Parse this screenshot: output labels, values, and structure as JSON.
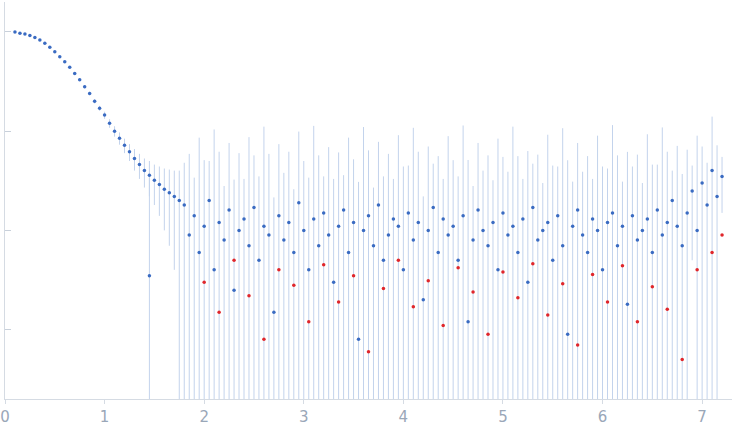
{
  "chart_data": {
    "type": "scatter",
    "log": "y",
    "grid": false,
    "tick_labels": "x",
    "marker": "circle",
    "xlim": [
      0,
      7.3
    ],
    "xticks": [
      0,
      1,
      2,
      3,
      4,
      5,
      6,
      7
    ],
    "ylim": [
      0.0002,
      2
    ],
    "yticks": [
      0.001,
      0.01,
      0.1,
      1
    ],
    "series": [
      {
        "color": "#3a6bc2",
        "x": [
          0.1,
          0.15,
          0.2,
          0.25,
          0.3,
          0.35,
          0.4,
          0.45,
          0.5,
          0.55,
          0.6,
          0.65,
          0.7,
          0.75,
          0.8,
          0.85,
          0.9,
          0.95,
          1.0,
          1.05,
          1.1,
          1.15,
          1.2,
          1.25,
          1.3,
          1.35,
          1.4,
          1.45,
          1.5,
          1.55,
          1.6,
          1.65,
          1.7,
          1.75,
          1.45,
          1.8,
          1.85,
          1.9,
          1.95,
          2.0,
          2.05,
          2.1,
          2.15,
          2.2,
          2.25,
          2.3,
          2.35,
          2.4,
          2.45,
          2.5,
          2.55,
          2.6,
          2.65,
          2.7,
          2.75,
          2.8,
          2.85,
          2.9,
          2.95,
          3.0,
          3.05,
          3.1,
          3.15,
          3.2,
          3.25,
          3.3,
          3.35,
          3.4,
          3.45,
          3.5,
          3.55,
          3.6,
          3.65,
          3.7,
          3.75,
          3.8,
          3.85,
          3.9,
          3.95,
          4.0,
          4.05,
          4.1,
          4.15,
          4.2,
          4.25,
          4.3,
          4.35,
          4.4,
          4.45,
          4.5,
          4.55,
          4.6,
          4.65,
          4.7,
          4.75,
          4.8,
          4.85,
          4.9,
          4.95,
          5.0,
          5.05,
          5.1,
          5.15,
          5.2,
          5.25,
          5.3,
          5.35,
          5.4,
          5.45,
          5.5,
          5.55,
          5.6,
          5.65,
          5.7,
          5.75,
          5.8,
          5.85,
          5.9,
          5.95,
          6.0,
          6.05,
          6.1,
          6.15,
          6.2,
          6.25,
          6.3,
          6.35,
          6.4,
          6.45,
          6.5,
          6.55,
          6.6,
          6.65,
          6.7,
          6.75,
          6.8,
          6.85,
          6.9,
          6.95,
          7.0,
          7.05,
          7.1,
          7.15,
          7.2
        ],
        "values": [
          1.0,
          0.97,
          0.95,
          0.92,
          0.88,
          0.83,
          0.77,
          0.7,
          0.63,
          0.56,
          0.5,
          0.44,
          0.38,
          0.33,
          0.28,
          0.24,
          0.2,
          0.17,
          0.145,
          0.12,
          0.1,
          0.085,
          0.072,
          0.062,
          0.053,
          0.046,
          0.04,
          0.036,
          0.032,
          0.029,
          0.026,
          0.024,
          0.022,
          0.02,
          0.0035,
          0.018,
          0.009,
          0.014,
          0.006,
          0.011,
          0.02,
          0.004,
          0.012,
          0.008,
          0.016,
          0.0025,
          0.01,
          0.013,
          0.007,
          0.017,
          0.005,
          0.011,
          0.009,
          0.0015,
          0.014,
          0.008,
          0.012,
          0.006,
          0.019,
          0.01,
          0.004,
          0.013,
          0.007,
          0.015,
          0.009,
          0.003,
          0.011,
          0.016,
          0.006,
          0.012,
          0.0008,
          0.01,
          0.014,
          0.007,
          0.018,
          0.005,
          0.009,
          0.013,
          0.011,
          0.004,
          0.015,
          0.008,
          0.012,
          0.002,
          0.01,
          0.017,
          0.006,
          0.013,
          0.009,
          0.011,
          0.005,
          0.014,
          0.0012,
          0.008,
          0.016,
          0.01,
          0.007,
          0.012,
          0.004,
          0.015,
          0.009,
          0.011,
          0.006,
          0.013,
          0.003,
          0.017,
          0.008,
          0.01,
          0.012,
          0.005,
          0.014,
          0.007,
          0.0009,
          0.011,
          0.016,
          0.009,
          0.006,
          0.013,
          0.01,
          0.004,
          0.012,
          0.015,
          0.007,
          0.011,
          0.0018,
          0.014,
          0.008,
          0.01,
          0.013,
          0.006,
          0.016,
          0.009,
          0.012,
          0.02,
          0.011,
          0.007,
          0.015,
          0.025,
          0.01,
          0.03,
          0.018,
          0.04,
          0.022,
          0.035
        ],
        "error": [
          0.01,
          0.01,
          0.01,
          0.01,
          0.01,
          0.01,
          0.01,
          0.01,
          0.01,
          0.01,
          0.01,
          0.01,
          0.01,
          0.01,
          0.01,
          0.01,
          0.01,
          0.01,
          0.012,
          0.012,
          0.012,
          0.012,
          0.012,
          0.012,
          0.013,
          0.013,
          0.013,
          0.014,
          0.014,
          0.015,
          0.016,
          0.017,
          0.018,
          0.02,
          0.03,
          0.03,
          0.05,
          0.02,
          0.08,
          0.04,
          0.03,
          0.1,
          0.05,
          0.02,
          0.06,
          0.03,
          0.05,
          0.02,
          0.08,
          0.04,
          0.03,
          0.1,
          0.05,
          0.02,
          0.06,
          0.03,
          0.05,
          0.02,
          0.08,
          0.04,
          0.03,
          0.1,
          0.05,
          0.02,
          0.06,
          0.03,
          0.05,
          0.02,
          0.08,
          0.04,
          0.03,
          0.1,
          0.05,
          0.02,
          0.06,
          0.03,
          0.05,
          0.02,
          0.08,
          0.04,
          0.03,
          0.1,
          0.05,
          0.02,
          0.06,
          0.03,
          0.05,
          0.02,
          0.08,
          0.04,
          0.03,
          0.1,
          0.05,
          0.02,
          0.06,
          0.03,
          0.05,
          0.02,
          0.08,
          0.04,
          0.03,
          0.1,
          0.05,
          0.02,
          0.06,
          0.03,
          0.05,
          0.02,
          0.08,
          0.04,
          0.03,
          0.1,
          0.05,
          0.02,
          0.06,
          0.03,
          0.05,
          0.02,
          0.08,
          0.04,
          0.03,
          0.1,
          0.05,
          0.02,
          0.06,
          0.03,
          0.05,
          0.02,
          0.08,
          0.04,
          0.03,
          0.1,
          0.05,
          0.02,
          0.06,
          0.03,
          0.05,
          0.02,
          0.08,
          0.04,
          0.03,
          0.1,
          0.05,
          0.02
        ]
      },
      {
        "color": "#e0262b",
        "x": [
          2.0,
          2.15,
          2.3,
          2.45,
          2.6,
          2.75,
          2.9,
          3.05,
          3.2,
          3.35,
          3.5,
          3.65,
          3.8,
          3.95,
          4.1,
          4.25,
          4.4,
          4.55,
          4.7,
          4.85,
          5.0,
          5.15,
          5.3,
          5.45,
          5.6,
          5.75,
          5.9,
          6.05,
          6.2,
          6.35,
          6.5,
          6.65,
          6.8,
          6.95,
          7.1,
          7.2
        ],
        "values": [
          0.003,
          0.0015,
          0.005,
          0.0022,
          0.0008,
          0.004,
          0.0028,
          0.0012,
          0.0045,
          0.0019,
          0.0035,
          0.0006,
          0.0026,
          0.005,
          0.0017,
          0.0031,
          0.0011,
          0.0042,
          0.0024,
          0.0009,
          0.0038,
          0.0021,
          0.0046,
          0.0014,
          0.0029,
          0.0007,
          0.0036,
          0.0019,
          0.0044,
          0.0012,
          0.0027,
          0.0016,
          0.0005,
          0.004,
          0.006,
          0.009
        ]
      }
    ]
  }
}
